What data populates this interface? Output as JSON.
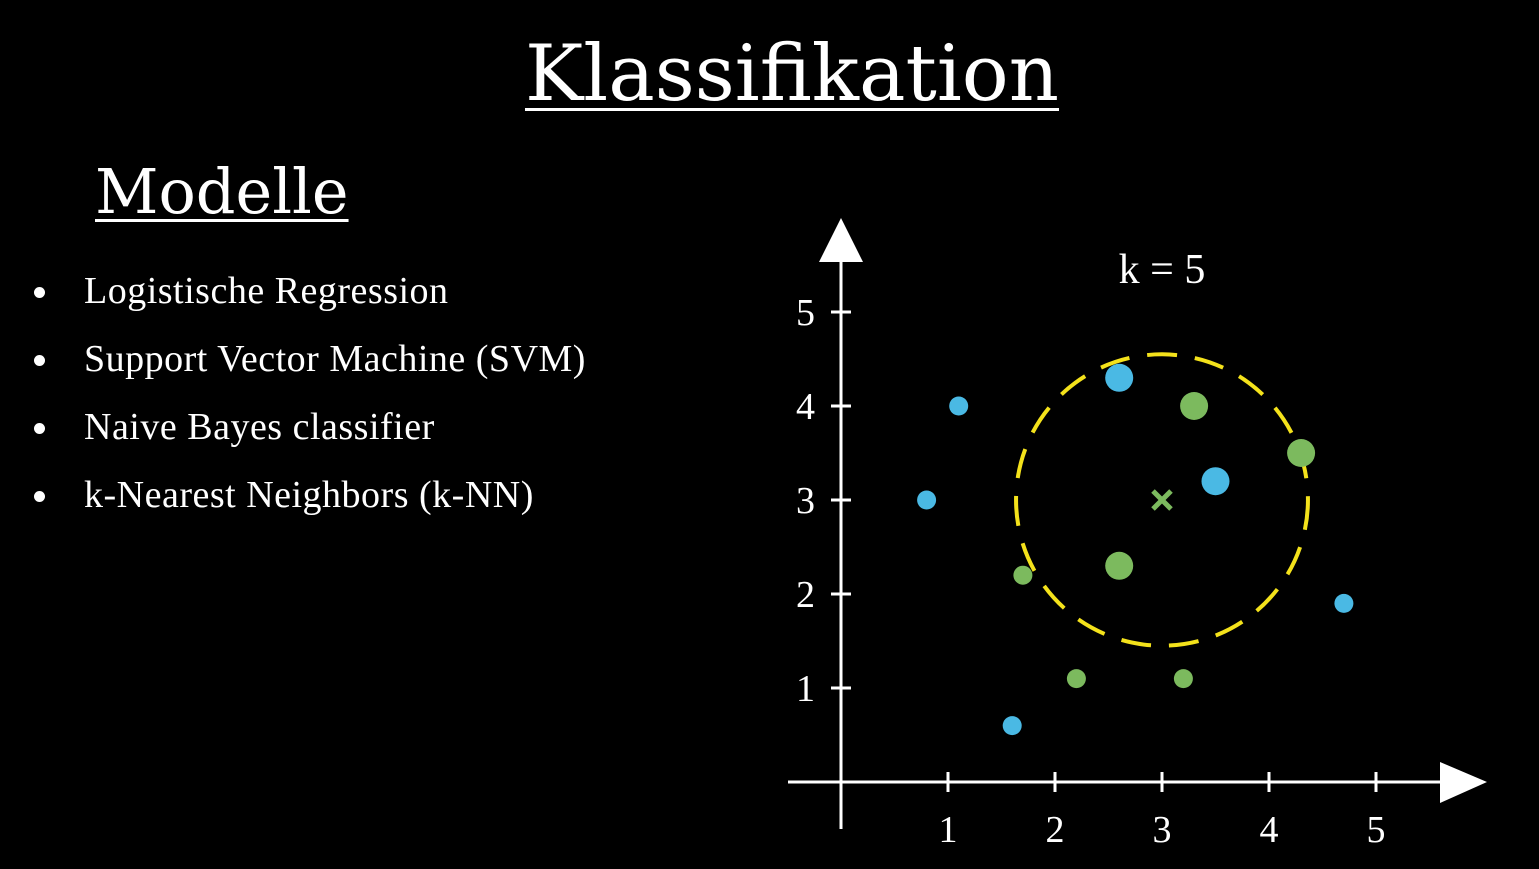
{
  "slide": {
    "title": "Klassifikation",
    "subtitle": "Modelle",
    "models": [
      "Logistische Regression",
      "Support Vector Machine (SVM)",
      "Naive Bayes classifier",
      "k-Nearest Neighbors (k-NN)"
    ]
  },
  "chart_data": {
    "type": "scatter",
    "annotation": "k = 5",
    "x_ticks": [
      1,
      2,
      3,
      4,
      5
    ],
    "y_ticks": [
      1,
      2,
      3,
      4,
      5
    ],
    "xlim": [
      0,
      6
    ],
    "ylim": [
      0,
      5.5
    ],
    "grid": false,
    "colors": {
      "blue": "#4ab9e4",
      "green": "#7cba5e",
      "circle": "#f4e21b",
      "axes": "#ffffff"
    },
    "query_point": {
      "x": 3.0,
      "y": 3.0,
      "class": "green",
      "marker": "x"
    },
    "neighborhood": {
      "center": [
        3.0,
        3.0
      ],
      "radius": 1.55,
      "style": "dashed"
    },
    "series": [
      {
        "class": "blue",
        "points": [
          {
            "x": 1.1,
            "y": 4.0,
            "neighbor": false
          },
          {
            "x": 0.8,
            "y": 3.0,
            "neighbor": false
          },
          {
            "x": 1.6,
            "y": 0.6,
            "neighbor": false
          },
          {
            "x": 4.7,
            "y": 1.9,
            "neighbor": false
          },
          {
            "x": 2.6,
            "y": 4.3,
            "neighbor": true
          },
          {
            "x": 3.5,
            "y": 3.2,
            "neighbor": true
          }
        ]
      },
      {
        "class": "green",
        "points": [
          {
            "x": 1.7,
            "y": 2.2,
            "neighbor": false
          },
          {
            "x": 2.2,
            "y": 1.1,
            "neighbor": false
          },
          {
            "x": 3.2,
            "y": 1.1,
            "neighbor": false
          },
          {
            "x": 3.3,
            "y": 4.0,
            "neighbor": true
          },
          {
            "x": 4.3,
            "y": 3.5,
            "neighbor": true
          },
          {
            "x": 2.6,
            "y": 2.3,
            "neighbor": true
          }
        ]
      }
    ]
  }
}
